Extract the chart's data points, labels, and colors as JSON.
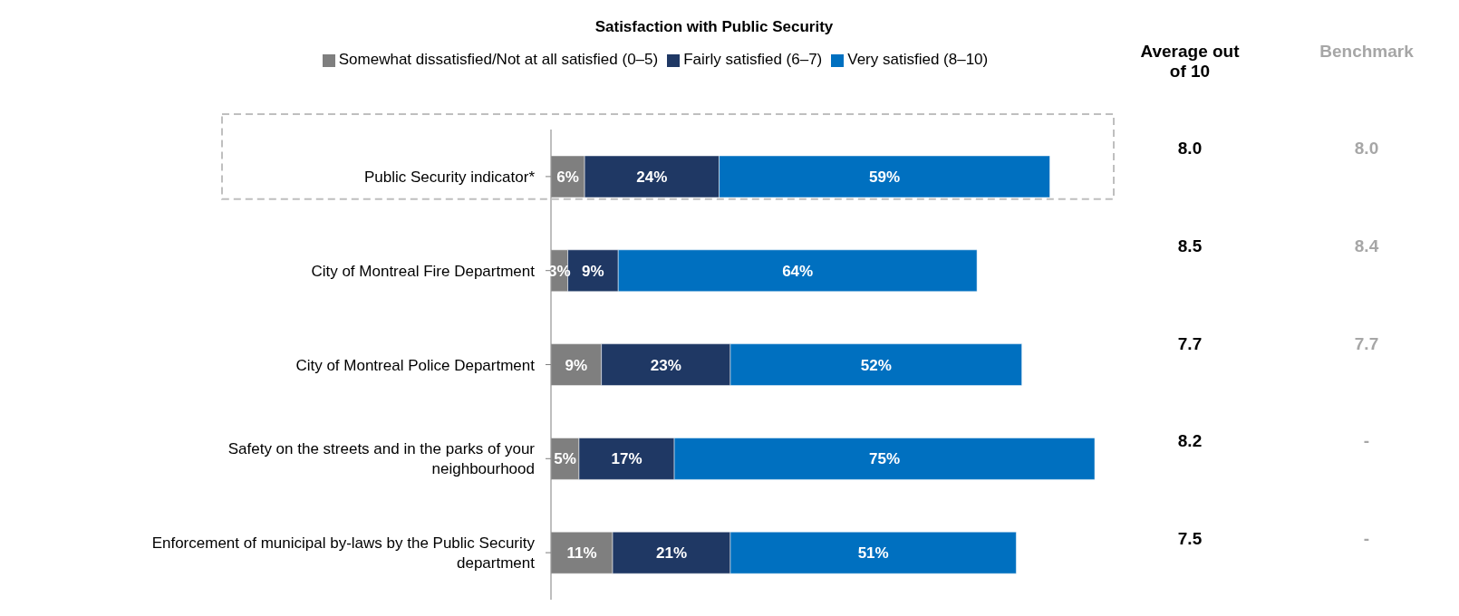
{
  "chart_data": {
    "type": "bar",
    "orientation": "horizontal",
    "stacked": true,
    "title": "Satisfaction with Public Security",
    "categories": [
      "Public Security indicator*",
      "City of Montreal Fire Department",
      "City of Montreal Police Department",
      "Safety on the streets and in the parks of your neighbourhood",
      "Enforcement of municipal by-laws by the Public Security department"
    ],
    "series": [
      {
        "name": "Somewhat dissatisfied/Not at all satisfied (0–5)",
        "color": "#7f7f7f",
        "values": [
          6,
          3,
          9,
          5,
          11
        ],
        "value_labels": [
          "6%",
          "3%",
          "9%",
          "5%",
          "11%"
        ]
      },
      {
        "name": "Fairly satisfied (6–7)",
        "color": "#1f3864",
        "values": [
          24,
          9,
          23,
          17,
          21
        ],
        "value_labels": [
          "24%",
          "9%",
          "23%",
          "17%",
          "21%"
        ]
      },
      {
        "name": "Very satisfied (8–10)",
        "color": "#0070c0",
        "values": [
          59,
          64,
          52,
          75,
          51
        ],
        "value_labels": [
          "59%",
          "64%",
          "52%",
          "75%",
          "51%"
        ]
      }
    ],
    "legend": "top",
    "annotations": [
      "Average out of 10",
      "8.0",
      "8.5",
      "7.7",
      "8.2",
      "7.5",
      "Benchmark",
      "8.0",
      "8.4",
      "7.7",
      "-",
      "-"
    ]
  }
}
